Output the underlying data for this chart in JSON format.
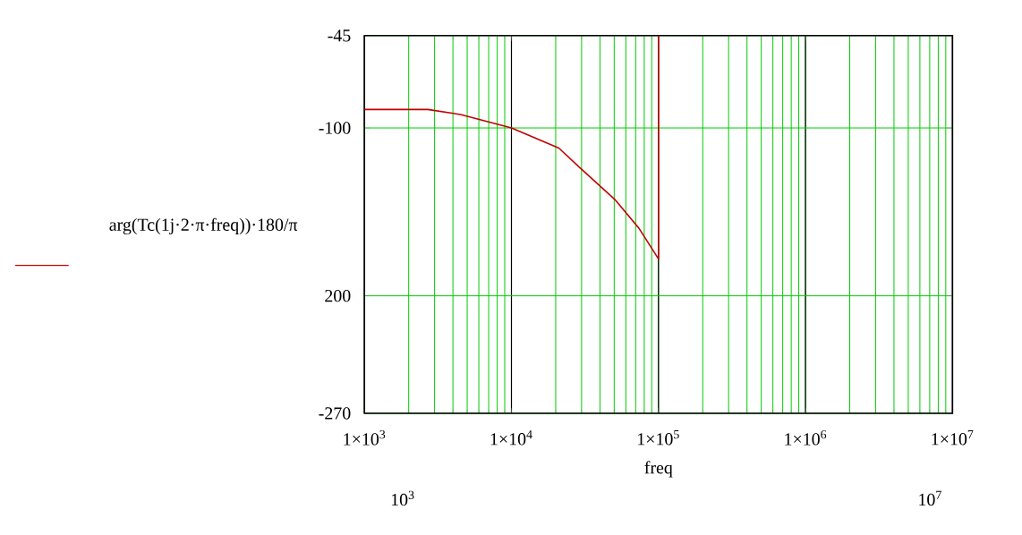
{
  "chart_data": {
    "type": "line",
    "xlabel": "freq",
    "ylabel": "arg(Tc(1j·2·π·freq))·180/π",
    "x": [
      1000,
      2700,
      4500,
      10000,
      21000,
      29500,
      51000,
      74000,
      100000,
      100000
    ],
    "series": [
      {
        "color": "#c00000",
        "values": [
          -89,
          -89,
          -92,
          -100,
          -112,
          -124,
          -143,
          -160,
          -178,
          -45
        ]
      }
    ],
    "log": "x",
    "xlim": [
      1000,
      10000000
    ],
    "ylim": [
      -270,
      -45
    ],
    "xticks": [
      {
        "value": 1000,
        "label": "1×10$^{3}$"
      },
      {
        "value": 10000,
        "label": "1×10$^{4}$"
      },
      {
        "value": 100000,
        "label": "1×10$^{5}$"
      },
      {
        "value": 1000000,
        "label": "1×10$^{6}$"
      },
      {
        "value": 10000000,
        "label": "1×10$^{7}$"
      }
    ],
    "yticks": [
      -45,
      -100,
      {
        "value": -200,
        "label": "200"
      },
      -270
    ],
    "grid": true,
    "annotations": [
      "10$^{3}$",
      "10$^{7}$"
    ]
  }
}
